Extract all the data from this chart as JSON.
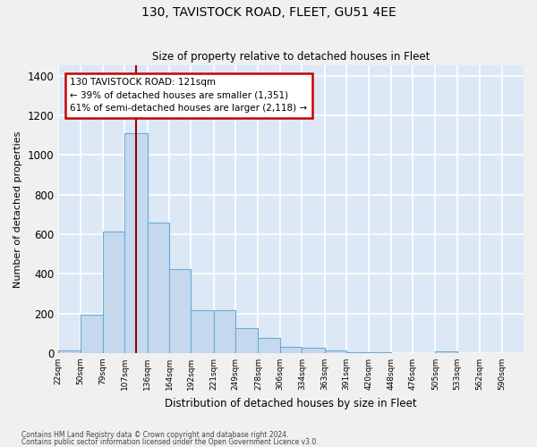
{
  "title": "130, TAVISTOCK ROAD, FLEET, GU51 4EE",
  "subtitle": "Size of property relative to detached houses in Fleet",
  "xlabel": "Distribution of detached houses by size in Fleet",
  "ylabel": "Number of detached properties",
  "bar_color": "#c5d9ee",
  "bar_edgecolor": "#6aaad4",
  "plot_bg_color": "#dce8f5",
  "fig_bg_color": "#f0f0f0",
  "grid_color": "#ffffff",
  "vline_color": "#990000",
  "annotation_box_edgecolor": "#cc0000",
  "annotation_text": "130 TAVISTOCK ROAD: 121sqm\n← 39% of detached houses are smaller (1,351)\n61% of semi-detached houses are larger (2,118) →",
  "bins": [
    22,
    50,
    79,
    107,
    136,
    164,
    192,
    221,
    249,
    278,
    306,
    334,
    363,
    391,
    420,
    448,
    476,
    505,
    533,
    562,
    590
  ],
  "counts": [
    15,
    195,
    615,
    1110,
    660,
    425,
    215,
    215,
    125,
    75,
    30,
    25,
    15,
    5,
    5,
    0,
    0,
    10,
    0,
    0,
    0
  ],
  "ylim": [
    0,
    1450
  ],
  "yticks": [
    0,
    200,
    400,
    600,
    800,
    1000,
    1200,
    1400
  ],
  "vline_x": 121,
  "footer1": "Contains HM Land Registry data © Crown copyright and database right 2024.",
  "footer2": "Contains public sector information licensed under the Open Government Licence v3.0."
}
